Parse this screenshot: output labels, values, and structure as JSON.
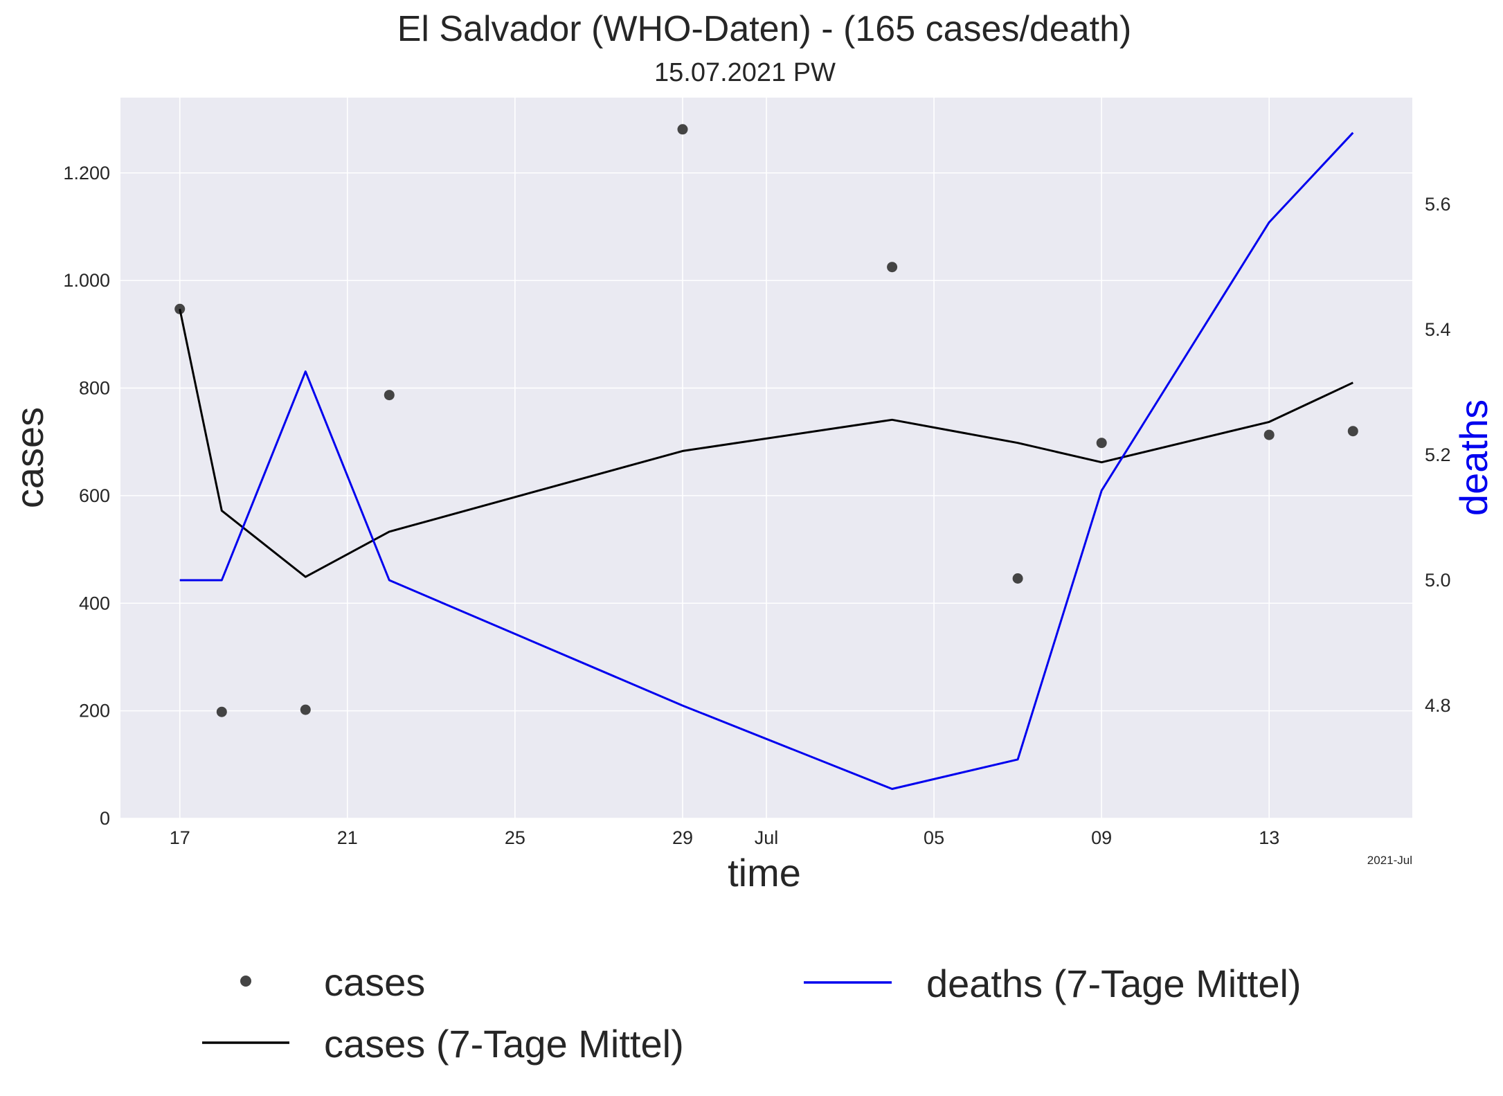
{
  "chart_data": {
    "type": "line",
    "title": "El Salvador (WHO-Daten) - (165 cases/death)",
    "subtitle": "15.07.2021 PW",
    "xlabel": "time",
    "ylabel_left": "cases",
    "ylabel_right": "deaths",
    "x_offset_label": "2021-Jul",
    "x_range": [
      "2021-06-15T14:00:00",
      "2021-07-16T10:00:00"
    ],
    "x_ticks": [
      {
        "date": "2021-06-17",
        "label": "17"
      },
      {
        "date": "2021-06-21",
        "label": "21"
      },
      {
        "date": "2021-06-25",
        "label": "25"
      },
      {
        "date": "2021-06-29",
        "label": "29"
      },
      {
        "date": "2021-07-01",
        "label": "Jul"
      },
      {
        "date": "2021-07-05",
        "label": "05"
      },
      {
        "date": "2021-07-09",
        "label": "09"
      },
      {
        "date": "2021-07-13",
        "label": "13"
      }
    ],
    "y_left": {
      "range": [
        0,
        1340
      ],
      "ticks": [
        0,
        200,
        400,
        600,
        800,
        1000,
        1200
      ],
      "tick_labels": [
        "0",
        "200",
        "400",
        "600",
        "800",
        "1.000",
        "1.200"
      ]
    },
    "y_right": {
      "range": [
        4.62,
        5.77
      ],
      "ticks": [
        4.8,
        5.0,
        5.2,
        5.4,
        5.6
      ],
      "tick_labels": [
        "4.8",
        "5.0",
        "5.2",
        "5.4",
        "5.6"
      ]
    },
    "grid": true,
    "legend": "bottom",
    "series": [
      {
        "name": "cases",
        "type": "scatter",
        "axis": "left",
        "color": "#444444",
        "x": [
          "2021-06-17",
          "2021-06-18",
          "2021-06-20",
          "2021-06-22",
          "2021-06-29",
          "2021-07-04",
          "2021-07-07",
          "2021-07-09",
          "2021-07-13",
          "2021-07-15"
        ],
        "y": [
          947,
          198,
          202,
          787,
          1281,
          1025,
          446,
          698,
          713,
          720
        ]
      },
      {
        "name": "cases (7-Tage Mittel)",
        "type": "line",
        "axis": "left",
        "color": "#000000",
        "x": [
          "2021-06-17",
          "2021-06-18",
          "2021-06-20",
          "2021-06-22",
          "2021-06-29",
          "2021-07-04",
          "2021-07-07",
          "2021-07-09",
          "2021-07-13",
          "2021-07-15"
        ],
        "y": [
          947,
          572,
          449,
          533,
          683,
          741,
          698,
          662,
          737,
          810
        ]
      },
      {
        "name": "deaths (7-Tage Mittel)",
        "type": "line",
        "axis": "right",
        "color": "#0000ee",
        "x": [
          "2021-06-17",
          "2021-06-18",
          "2021-06-20",
          "2021-06-22",
          "2021-06-29",
          "2021-07-04",
          "2021-07-07",
          "2021-07-09",
          "2021-07-13",
          "2021-07-15"
        ],
        "y": [
          5.0,
          5.0,
          5.333,
          5.0,
          4.8,
          4.667,
          4.714,
          5.143,
          5.571,
          5.714
        ]
      }
    ]
  }
}
